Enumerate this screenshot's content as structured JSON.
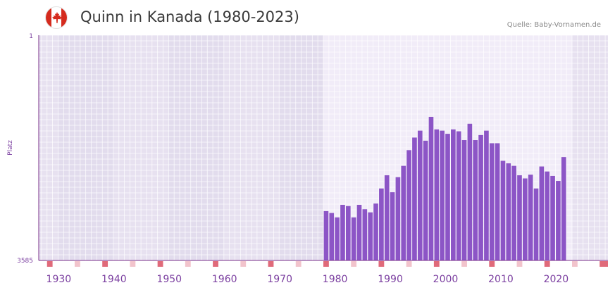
{
  "header": {
    "title": "Quinn in Kanada (1980-2023)",
    "source": "Quelle: Baby-Vornamen.de",
    "flag_icon": "canada-flag-icon"
  },
  "colors": {
    "bar": "#8c55c6",
    "axis": "#7a2f8a",
    "label": "#7b3fa0",
    "marker": "#e06a7a",
    "marker_light": "#f2c4cc",
    "band_dark": "#e2dced",
    "band_light": "#f1ecf8",
    "grid": "#ffffff"
  },
  "chart_data": {
    "type": "bar",
    "title": "Quinn in Kanada (1980-2023)",
    "ylabel": "Platz",
    "xlabel": "",
    "y_reversed": true,
    "ylim": [
      1,
      3585
    ],
    "y_tick_labels": [
      "1",
      "3585"
    ],
    "xlim": [
      1926,
      2029
    ],
    "x_tick_labels": [
      "1930",
      "1940",
      "1950",
      "1960",
      "1970",
      "1980",
      "1990",
      "2000",
      "2010",
      "2020"
    ],
    "highlight_range": [
      1977.5,
      2022.5
    ],
    "x": [
      1978,
      1979,
      1980,
      1981,
      1982,
      1983,
      1984,
      1985,
      1986,
      1987,
      1988,
      1989,
      1990,
      1991,
      1992,
      1993,
      1994,
      1995,
      1996,
      1997,
      1998,
      1999,
      2000,
      2001,
      2002,
      2003,
      2004,
      2005,
      2006,
      2007,
      2008,
      2009,
      2010,
      2011,
      2012,
      2013,
      2014,
      2015,
      2016,
      2017,
      2018,
      2019,
      2020,
      2021
    ],
    "values": [
      2800,
      2830,
      2900,
      2700,
      2720,
      2900,
      2700,
      2770,
      2820,
      2680,
      2440,
      2230,
      2500,
      2260,
      2080,
      1830,
      1630,
      1520,
      1680,
      1300,
      1500,
      1520,
      1570,
      1500,
      1530,
      1670,
      1410,
      1670,
      1590,
      1520,
      1720,
      1720,
      2000,
      2040,
      2080,
      2230,
      2280,
      2220,
      2440,
      2090,
      2170,
      2240,
      2320,
      1940
    ]
  }
}
